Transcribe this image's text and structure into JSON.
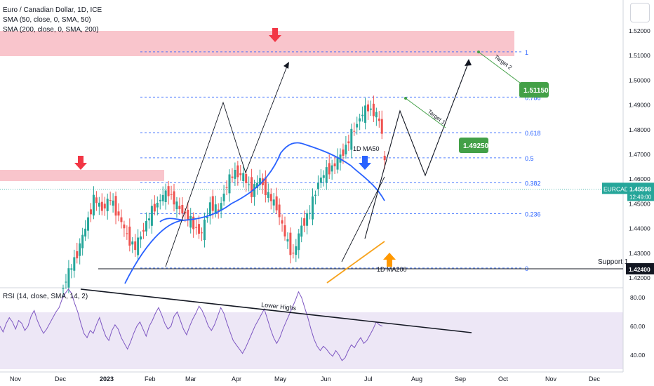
{
  "header": {
    "symbol_line": "Euro / Canadian Dollar, 1D, ICE",
    "indicators": [
      "SMA (50, close, 0, SMA, 50)",
      "SMA (200, close, 0, SMA, 200)"
    ]
  },
  "rsi": {
    "legend": "RSI (14, close, SMA, 14, 2)",
    "ticks": [
      "80.00",
      "60.00",
      "40.00"
    ],
    "annotation": "Lower Highs"
  },
  "price_axis": {
    "ticks": [
      "1.52000",
      "1.51000",
      "1.50000",
      "1.49000",
      "1.48000",
      "1.47000",
      "1.46000",
      "1.45000",
      "1.44000",
      "1.43000",
      "1.42000"
    ],
    "current_symbol": "EURCAD",
    "current_price": "1.45598",
    "countdown": "12:49:00",
    "support_price": "1.42400"
  },
  "time_axis": [
    "Nov",
    "Dec",
    "2023",
    "Feb",
    "Mar",
    "Apr",
    "May",
    "Jun",
    "Jul",
    "Aug",
    "Sep",
    "Oct",
    "Nov",
    "Dec"
  ],
  "fib_levels": [
    {
      "label": "1",
      "price": 1.5115
    },
    {
      "label": "0.786",
      "price": 1.4932
    },
    {
      "label": "0.618",
      "price": 1.4788
    },
    {
      "label": "0.5",
      "price": 1.4686
    },
    {
      "label": "0.382",
      "price": 1.4585
    },
    {
      "label": "0.236",
      "price": 1.446
    },
    {
      "label": "0",
      "price": 1.424
    }
  ],
  "annotations": {
    "ma50_label": "1D MA50",
    "ma200_label": "1D MA200",
    "support_label": "Support 1",
    "target1_label": "Target 1",
    "target2_label": "Target 2",
    "target1_price": "1.49250",
    "target2_price": "1.51150"
  },
  "colors": {
    "bull": "#26a69a",
    "bear": "#ef5350",
    "ma50": "#2962ff",
    "ma200": "#f7a21b",
    "resistance_zone": "#f8bbc3",
    "fib": "#2962ff",
    "rsi_line": "#7e57c2",
    "rsi_band": "#ede7f6",
    "target_box": "#43a047",
    "arrow_red": "#f23645",
    "arrow_blue": "#2962ff",
    "arrow_orange": "#ff9800"
  },
  "chart_data": {
    "type": "candlestick",
    "title": "Euro / Canadian Dollar, 1D, ICE",
    "ylim": [
      1.415,
      1.524
    ],
    "price_path": [
      [
        1.414,
        1.422,
        1.43,
        1.44,
        1.452,
        1.448,
        1.452,
        1.445,
        1.437,
        1.432,
        1.44,
        1.447,
        1.452,
        1.455,
        1.449,
        1.446,
        1.441,
        1.438,
        1.45,
        1.447,
        1.458,
        1.463,
        1.461,
        1.455,
        1.46,
        1.453,
        1.449,
        1.437
      ],
      [
        1.437,
        1.429,
        1.441,
        1.447,
        1.459,
        1.463,
        1.466,
        1.471,
        1.478,
        1.485,
        1.489,
        1.486,
        1.476,
        1.466,
        1.469,
        1.472,
        1.479,
        1.488,
        1.496,
        1.505,
        1.508,
        1.5,
        1.494,
        1.486,
        1.48,
        1.47
      ],
      [
        1.47,
        1.462,
        1.458,
        1.45,
        1.446,
        1.438,
        1.432,
        1.43,
        1.437,
        1.441,
        1.445,
        1.44,
        1.438,
        1.446,
        1.443,
        1.438,
        1.446,
        1.452,
        1.456,
        1.458
      ]
    ],
    "ma50_path": [
      [
        1.4375,
        1.447
      ],
      [
        1.447,
        1.4475
      ],
      [
        1.4475,
        1.45
      ],
      [
        1.45,
        1.459
      ],
      [
        1.459,
        1.474
      ],
      [
        1.474,
        1.47
      ],
      [
        1.47,
        1.46
      ],
      [
        1.46,
        1.452
      ]
    ],
    "ma200_path": [
      [
        1.416,
        1.434
      ]
    ],
    "rsi_ylim": [
      30,
      90
    ],
    "rsi_series": [
      60,
      56,
      62,
      66,
      63,
      58,
      64,
      62,
      57,
      60,
      67,
      71,
      64,
      59,
      55,
      58,
      62,
      66,
      70,
      73,
      79,
      83,
      86,
      83,
      76,
      70,
      62,
      55,
      52,
      57,
      55,
      61,
      66,
      59,
      53,
      50,
      57,
      61,
      58,
      52,
      48,
      44,
      49,
      55,
      60,
      63,
      58,
      53,
      60,
      64,
      69,
      73,
      68,
      62,
      58,
      60,
      67,
      70,
      64,
      58,
      54,
      60,
      65,
      69,
      74,
      71,
      66,
      60,
      57,
      61,
      67,
      73,
      69,
      62,
      56,
      50,
      47,
      44,
      41,
      45,
      50,
      55,
      60,
      64,
      68,
      72,
      65,
      58,
      52,
      48,
      52,
      58,
      63,
      68,
      73,
      78,
      84,
      80,
      73,
      66,
      58,
      51,
      46,
      43,
      46,
      44,
      41,
      39,
      43,
      40,
      36,
      38,
      43,
      47,
      45,
      49,
      52,
      48,
      50,
      54,
      58,
      63,
      61,
      60
    ],
    "rsi_trendline": [
      [
        115,
        412
      ],
      [
        672,
        474
      ]
    ]
  }
}
